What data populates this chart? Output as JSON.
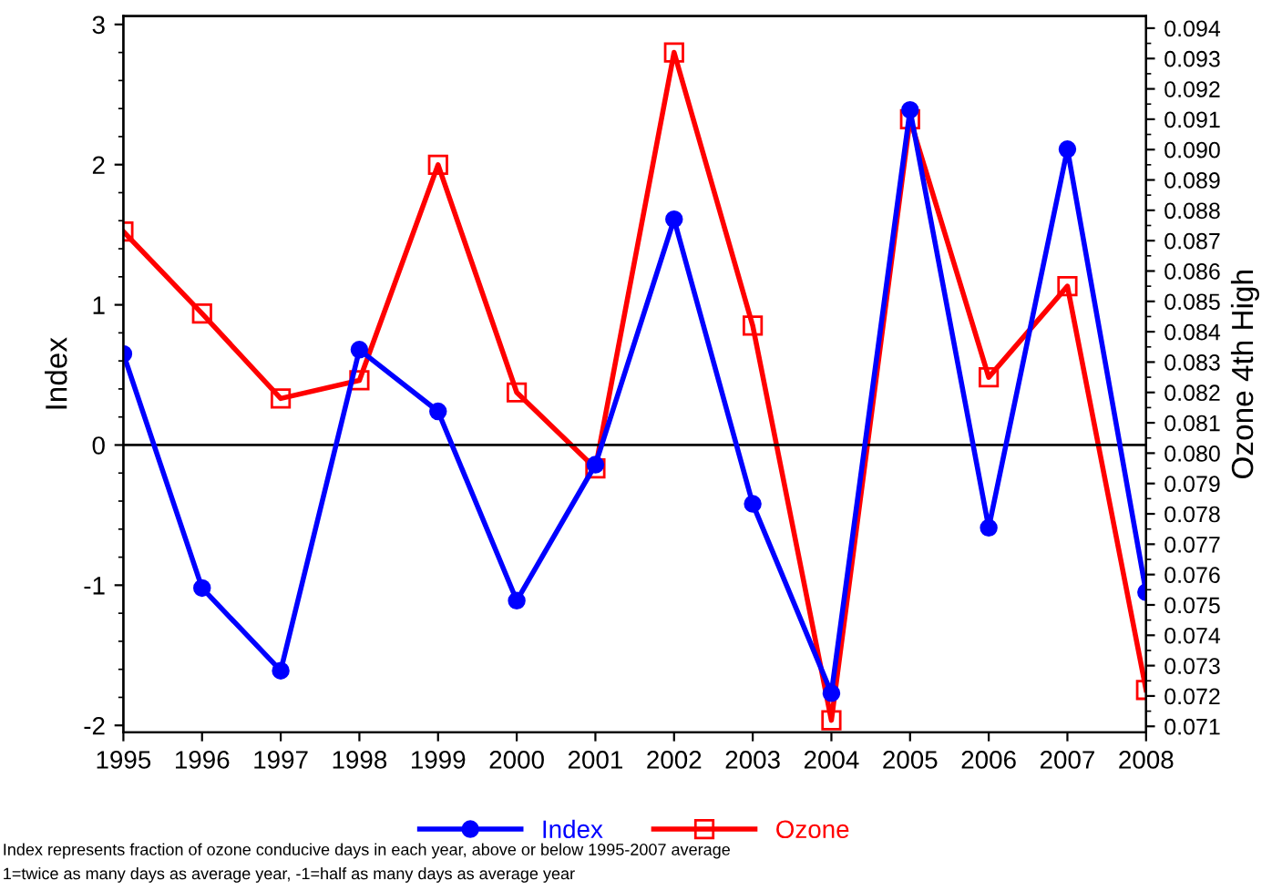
{
  "chart_data": {
    "type": "line",
    "ylabel": "Index",
    "y2label": "Ozone 4th High",
    "x": [
      1995,
      1996,
      1997,
      1998,
      1999,
      2000,
      2001,
      2002,
      2003,
      2004,
      2005,
      2006,
      2007,
      2008
    ],
    "series": [
      {
        "name": "Index",
        "color": "#0000ff",
        "marker": "circle",
        "values": [
          0.65,
          -1.02,
          -1.61,
          0.68,
          0.24,
          -1.11,
          -0.14,
          1.61,
          -0.42,
          -1.77,
          2.39,
          -0.59,
          2.11,
          -1.05
        ]
      },
      {
        "name": "Ozone",
        "color": "#ff0000",
        "marker": "square",
        "axis": "y2",
        "values": [
          0.0873,
          0.0846,
          0.0818,
          0.0824,
          0.0895,
          0.082,
          0.0795,
          0.0932,
          0.0842,
          0.0712,
          0.091,
          0.0825,
          0.0855,
          0.0722
        ]
      }
    ],
    "xlim": [
      1995,
      2008
    ],
    "xticks": [
      1995,
      1996,
      1997,
      1998,
      1999,
      2000,
      2001,
      2002,
      2003,
      2004,
      2005,
      2006,
      2007,
      2008
    ],
    "ylim": [
      -2.05,
      3.06
    ],
    "yticks": [
      -2,
      -1,
      0,
      1,
      2,
      3
    ],
    "y2lim": [
      0.0708,
      0.0944
    ],
    "y2ticks": [
      0.071,
      0.072,
      0.073,
      0.074,
      0.075,
      0.076,
      0.077,
      0.078,
      0.079,
      {
        "value": 0.08,
        "label": "0.080"
      },
      0.081,
      0.082,
      0.083,
      0.084,
      0.085,
      0.086,
      0.087,
      0.088,
      0.089,
      {
        "value": 0.09,
        "label": "0.090"
      },
      0.091,
      0.092,
      0.093,
      0.094
    ],
    "ref_lines": [
      {
        "axis": "y",
        "value": 0,
        "color": "#000000"
      }
    ],
    "legend": "bottom",
    "grid": false,
    "annotations": [
      "Index represents fraction of ozone conducive days in each year, above or below 1995-2007 average",
      "1=twice as many days as average year, -1=half as many days as average year"
    ]
  }
}
